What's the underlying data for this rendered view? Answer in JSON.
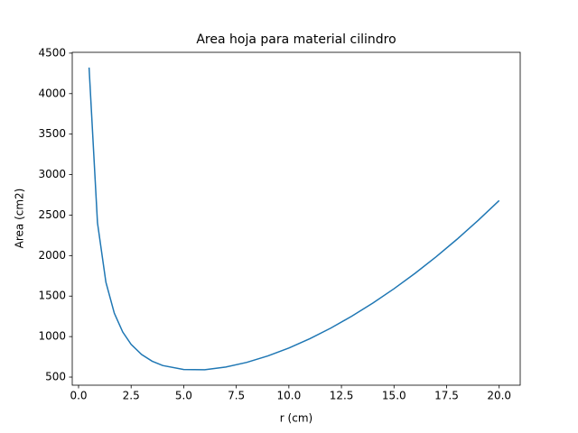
{
  "chart_data": {
    "type": "line",
    "title": "Area hoja para material cilindro",
    "xlabel": "r (cm)",
    "ylabel": "Area (cm2)",
    "x": [
      0.5,
      0.9,
      1.3,
      1.7,
      2.1,
      2.5,
      3,
      3.5,
      4,
      5,
      6,
      7,
      8,
      9,
      10,
      11,
      12,
      13,
      14,
      15,
      16,
      17,
      18,
      19,
      20
    ],
    "series": [
      {
        "color": "#1f77b4",
        "values": [
          4322,
          2405,
          1672,
          1289,
          1057,
          904,
          778,
          696,
          643,
          593,
          591,
          624,
          682,
          761,
          859,
          974,
          1106,
          1253,
          1415,
          1591,
          1781,
          1985,
          2203,
          2435,
          2680
        ]
      }
    ],
    "xlim": [
      -0.3,
      21
    ],
    "xticks": [
      {
        "value": 0,
        "label": "0.0"
      },
      {
        "value": 2.5,
        "label": "2.5"
      },
      {
        "value": 5,
        "label": "5.0"
      },
      {
        "value": 7.5,
        "label": "7.5"
      },
      {
        "value": 10,
        "label": "10.0"
      },
      {
        "value": 12.5,
        "label": "12.5"
      },
      {
        "value": 15,
        "label": "15.0"
      },
      {
        "value": 17.5,
        "label": "17.5"
      },
      {
        "value": 20,
        "label": "20.0"
      }
    ],
    "ylim": [
      400,
      4510
    ],
    "yticks": [
      500,
      1000,
      1500,
      2000,
      2500,
      3000,
      3500,
      4000,
      4500
    ]
  }
}
